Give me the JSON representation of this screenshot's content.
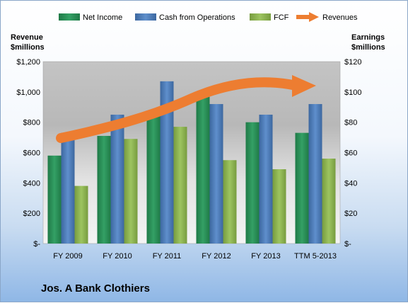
{
  "company_label": "Jos. A Bank Clothiers",
  "chart_data": {
    "type": "bar",
    "categories": [
      "FY 2009",
      "FY 2010",
      "FY 2011",
      "FY 2012",
      "FY 2013",
      "TTM 5-2013"
    ],
    "left_axis": {
      "title_line1": "Revenue",
      "title_line2": "$millions",
      "ticks": [
        "$-",
        "$200",
        "$400",
        "$600",
        "$800",
        "$1,000",
        "$1,200"
      ],
      "ylim": [
        0,
        1200
      ]
    },
    "right_axis": {
      "title_line1": "Earnings",
      "title_line2": "$millions",
      "ticks": [
        "$-",
        "$20",
        "$40",
        "$60",
        "$80",
        "$100",
        "$120"
      ],
      "ylim": [
        0,
        120
      ]
    },
    "series": [
      {
        "name": "Net Income",
        "axis": "right",
        "color": "#2e8b57",
        "values": [
          58,
          71,
          86,
          98,
          80,
          73
        ]
      },
      {
        "name": "Cash from Operations",
        "axis": "right",
        "color": "#4f7fbd",
        "values": [
          73,
          85,
          107,
          92,
          85,
          92
        ]
      },
      {
        "name": "FCF",
        "axis": "right",
        "color": "#8eb454",
        "values": [
          38,
          69,
          77,
          55,
          49,
          56
        ]
      }
    ],
    "trend": {
      "name": "Revenues",
      "type": "arrow",
      "color": "#ed7d31"
    },
    "legend_position": "top",
    "grid": false
  }
}
